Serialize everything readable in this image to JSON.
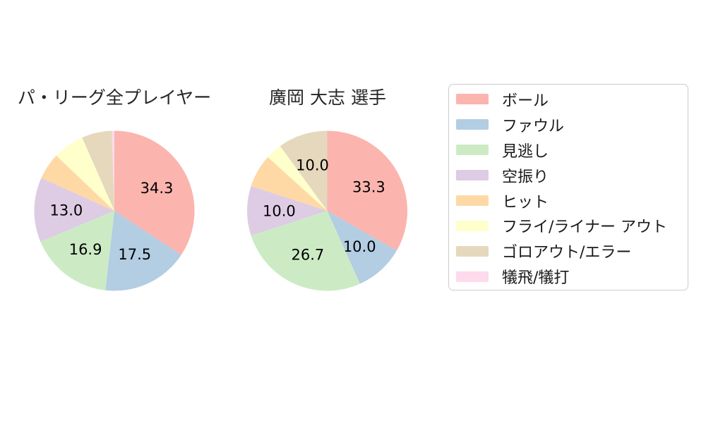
{
  "figure": {
    "background": "#ffffff",
    "text_color": "#262626"
  },
  "legend": {
    "position": "right",
    "border_color": "#cccccc",
    "items": [
      {
        "label": "ボール",
        "color": "#fbb4ae"
      },
      {
        "label": "ファウル",
        "color": "#b3cde3"
      },
      {
        "label": "見逃し",
        "color": "#ccebc5"
      },
      {
        "label": "空振り",
        "color": "#decbe4"
      },
      {
        "label": "ヒット",
        "color": "#fed9a6"
      },
      {
        "label": "フライ/ライナー アウト",
        "color": "#ffffcc"
      },
      {
        "label": "ゴロアウト/エラー",
        "color": "#e5d8bd"
      },
      {
        "label": "犠飛/犠打",
        "color": "#fddaec"
      }
    ]
  },
  "chart_data": [
    {
      "type": "pie",
      "title": "パ・リーグ全プレイヤー",
      "start": "top",
      "direction": "clockwise",
      "label_radius_ratio": 0.6,
      "categories": [
        "ボール",
        "ファウル",
        "見逃し",
        "空振り",
        "ヒット",
        "フライ/ライナー アウト",
        "ゴロアウト/エラー",
        "犠飛/犠打"
      ],
      "values": [
        34.3,
        17.5,
        16.9,
        13.0,
        5.4,
        6.3,
        6.1,
        0.5
      ],
      "slice_labels": [
        "34.3",
        "17.5",
        "16.9",
        "13.0",
        "",
        "",
        "",
        ""
      ],
      "colors": [
        "#fbb4ae",
        "#b3cde3",
        "#ccebc5",
        "#decbe4",
        "#fed9a6",
        "#ffffcc",
        "#e5d8bd",
        "#fddaec"
      ]
    },
    {
      "type": "pie",
      "title": "廣岡 大志 選手",
      "start": "top",
      "direction": "clockwise",
      "label_radius_ratio": 0.6,
      "categories": [
        "ボール",
        "ファウル",
        "見逃し",
        "空振り",
        "ヒット",
        "フライ/ライナー アウト",
        "ゴロアウト/エラー",
        "犠飛/犠打"
      ],
      "values": [
        33.3,
        10.0,
        26.7,
        10.0,
        6.7,
        3.3,
        10.0,
        0.0
      ],
      "slice_labels": [
        "33.3",
        "10.0",
        "26.7",
        "10.0",
        "",
        "",
        "10.0",
        ""
      ],
      "colors": [
        "#fbb4ae",
        "#b3cde3",
        "#ccebc5",
        "#decbe4",
        "#fed9a6",
        "#ffffcc",
        "#e5d8bd",
        "#fddaec"
      ]
    }
  ]
}
